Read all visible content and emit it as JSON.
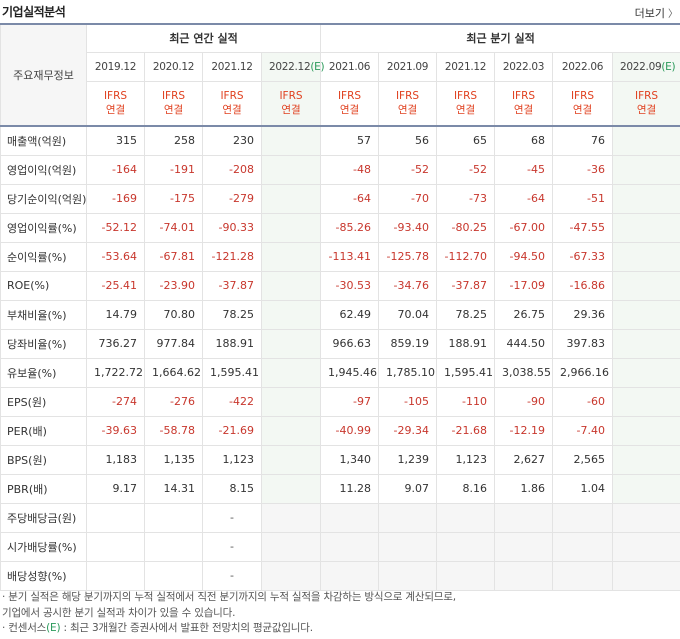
{
  "section_title": "기업실적분석",
  "more_label": "더보기",
  "more_icon": "chevron-right-icon",
  "corner_label": "주요재무정보",
  "groups": {
    "annual": "최근 연간 실적",
    "quarterly": "최근 분기 실적"
  },
  "periods": [
    "2019.12",
    "2020.12",
    "2021.12",
    "2022.12",
    "2021.06",
    "2021.09",
    "2021.12",
    "2022.03",
    "2022.06",
    "2022.09"
  ],
  "estimate_mark": "(E)",
  "ifrs": {
    "line1": "IFRS",
    "line2": "연결"
  },
  "rows": [
    {
      "label": "매출액(억원)",
      "values": [
        "315",
        "258",
        "230",
        "",
        "57",
        "56",
        "65",
        "68",
        "76",
        ""
      ]
    },
    {
      "label": "영업이익(억원)",
      "values": [
        "-164",
        "-191",
        "-208",
        "",
        "-48",
        "-52",
        "-52",
        "-45",
        "-36",
        ""
      ]
    },
    {
      "label": "당기순이익(억원)",
      "values": [
        "-169",
        "-175",
        "-279",
        "",
        "-64",
        "-70",
        "-73",
        "-64",
        "-51",
        ""
      ]
    },
    {
      "label": "영업이익률(%)",
      "values": [
        "-52.12",
        "-74.01",
        "-90.33",
        "",
        "-85.26",
        "-93.40",
        "-80.25",
        "-67.00",
        "-47.55",
        ""
      ]
    },
    {
      "label": "순이익률(%)",
      "values": [
        "-53.64",
        "-67.81",
        "-121.28",
        "",
        "-113.41",
        "-125.78",
        "-112.70",
        "-94.50",
        "-67.33",
        ""
      ]
    },
    {
      "label": "ROE(%)",
      "values": [
        "-25.41",
        "-23.90",
        "-37.87",
        "",
        "-30.53",
        "-34.76",
        "-37.87",
        "-17.09",
        "-16.86",
        ""
      ]
    },
    {
      "label": "부채비율(%)",
      "values": [
        "14.79",
        "70.80",
        "78.25",
        "",
        "62.49",
        "70.04",
        "78.25",
        "26.75",
        "29.36",
        ""
      ]
    },
    {
      "label": "당좌비율(%)",
      "values": [
        "736.27",
        "977.84",
        "188.91",
        "",
        "966.63",
        "859.19",
        "188.91",
        "444.50",
        "397.83",
        ""
      ]
    },
    {
      "label": "유보율(%)",
      "values": [
        "1,722.72",
        "1,664.62",
        "1,595.41",
        "",
        "1,945.46",
        "1,785.10",
        "1,595.41",
        "3,038.55",
        "2,966.16",
        ""
      ]
    },
    {
      "label": "EPS(원)",
      "values": [
        "-274",
        "-276",
        "-422",
        "",
        "-97",
        "-105",
        "-110",
        "-90",
        "-60",
        ""
      ]
    },
    {
      "label": "PER(배)",
      "values": [
        "-39.63",
        "-58.78",
        "-21.69",
        "",
        "-40.99",
        "-29.34",
        "-21.68",
        "-12.19",
        "-7.40",
        ""
      ]
    },
    {
      "label": "BPS(원)",
      "values": [
        "1,183",
        "1,135",
        "1,123",
        "",
        "1,340",
        "1,239",
        "1,123",
        "2,627",
        "2,565",
        ""
      ]
    },
    {
      "label": "PBR(배)",
      "values": [
        "9.17",
        "14.31",
        "8.15",
        "",
        "11.28",
        "9.07",
        "8.16",
        "1.86",
        "1.04",
        ""
      ]
    },
    {
      "label": "주당배당금(원)",
      "values": [
        "",
        "",
        "-",
        "",
        "",
        "",
        "",
        "",
        "",
        ""
      ],
      "sparse": true
    },
    {
      "label": "시가배당률(%)",
      "values": [
        "",
        "",
        "-",
        "",
        "",
        "",
        "",
        "",
        "",
        ""
      ],
      "sparse": true
    },
    {
      "label": "배당성향(%)",
      "values": [
        "",
        "",
        "-",
        "",
        "",
        "",
        "",
        "",
        "",
        ""
      ],
      "sparse": true
    }
  ],
  "notes": {
    "line1": "· 분기 실적은 해당 분기까지의 누적 실적에서 직전 분기까지의 누적 실적을 차감하는 방식으로 계산되므로,",
    "line2": "  기업에서 공시한 분기 실적과 차이가 있을 수 있습니다.",
    "line3_prefix": "· 컨센서스",
    "line3_mark": "(E)",
    "line3_suffix": " : 최근 3개월간 증권사에서 발표한 전망치의 평균값입니다."
  },
  "colors": {
    "negative": "#c8372d",
    "ifrs": "#e0401f",
    "estimate": "#2a9a5a",
    "header_border": "#7b8aa8"
  }
}
